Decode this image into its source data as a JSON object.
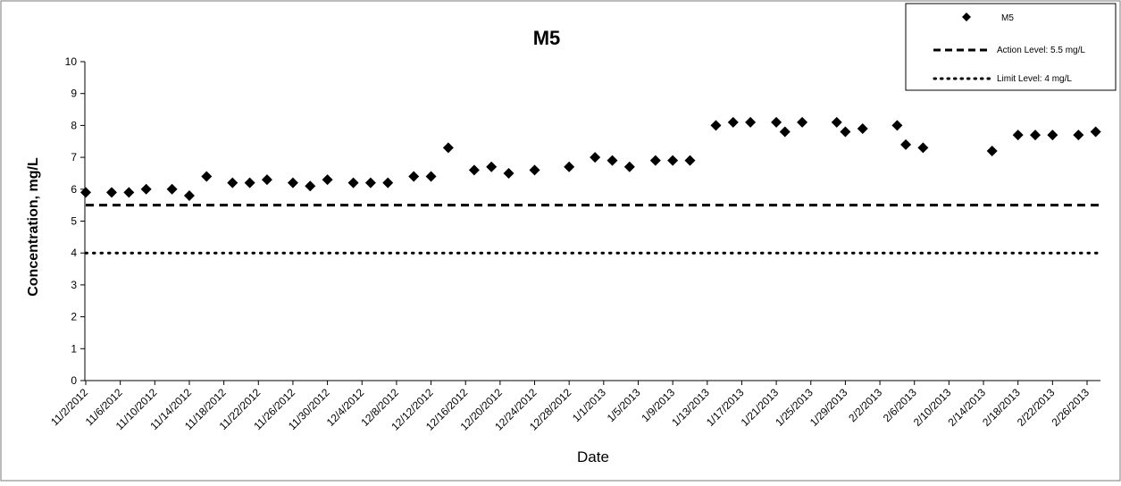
{
  "chart_data": {
    "type": "scatter",
    "title": "M5",
    "xlabel": "Date",
    "ylabel": "Concentration, mg/L",
    "ylim": [
      0,
      10
    ],
    "y_ticks": [
      0,
      1,
      2,
      3,
      4,
      5,
      6,
      7,
      8,
      9,
      10
    ],
    "x_tick_labels": [
      "11/2/2012",
      "11/6/2012",
      "11/10/2012",
      "11/14/2012",
      "11/18/2012",
      "11/22/2012",
      "11/26/2012",
      "11/30/2012",
      "12/4/2012",
      "12/8/2012",
      "12/12/2012",
      "12/16/2012",
      "12/20/2012",
      "12/24/2012",
      "12/28/2012",
      "1/1/2013",
      "1/5/2013",
      "1/9/2013",
      "1/13/2013",
      "1/17/2013",
      "1/21/2013",
      "1/25/2013",
      "1/29/2013",
      "2/2/2013",
      "2/6/2013",
      "2/10/2013",
      "2/14/2013",
      "2/18/2013",
      "2/22/2013",
      "2/26/2013"
    ],
    "grid": false,
    "legend_position": "top-right",
    "series": [
      {
        "name": "M5",
        "marker": "diamond",
        "points": [
          {
            "x": "11/2/2012",
            "y": 5.9
          },
          {
            "x": "11/5/2012",
            "y": 5.9
          },
          {
            "x": "11/7/2012",
            "y": 5.9
          },
          {
            "x": "11/9/2012",
            "y": 6.0
          },
          {
            "x": "11/12/2012",
            "y": 6.0
          },
          {
            "x": "11/14/2012",
            "y": 5.8
          },
          {
            "x": "11/16/2012",
            "y": 6.4
          },
          {
            "x": "11/19/2012",
            "y": 6.2
          },
          {
            "x": "11/21/2012",
            "y": 6.2
          },
          {
            "x": "11/23/2012",
            "y": 6.3
          },
          {
            "x": "11/26/2012",
            "y": 6.2
          },
          {
            "x": "11/28/2012",
            "y": 6.1
          },
          {
            "x": "11/30/2012",
            "y": 6.3
          },
          {
            "x": "12/3/2012",
            "y": 6.2
          },
          {
            "x": "12/5/2012",
            "y": 6.2
          },
          {
            "x": "12/7/2012",
            "y": 6.2
          },
          {
            "x": "12/10/2012",
            "y": 6.4
          },
          {
            "x": "12/12/2012",
            "y": 6.4
          },
          {
            "x": "12/14/2012",
            "y": 7.3
          },
          {
            "x": "12/17/2012",
            "y": 6.6
          },
          {
            "x": "12/19/2012",
            "y": 6.7
          },
          {
            "x": "12/21/2012",
            "y": 6.5
          },
          {
            "x": "12/24/2012",
            "y": 6.6
          },
          {
            "x": "12/28/2012",
            "y": 6.7
          },
          {
            "x": "12/31/2012",
            "y": 7.0
          },
          {
            "x": "1/2/2013",
            "y": 6.9
          },
          {
            "x": "1/4/2013",
            "y": 6.7
          },
          {
            "x": "1/7/2013",
            "y": 6.9
          },
          {
            "x": "1/9/2013",
            "y": 6.9
          },
          {
            "x": "1/11/2013",
            "y": 6.9
          },
          {
            "x": "1/14/2013",
            "y": 8.0
          },
          {
            "x": "1/16/2013",
            "y": 8.1
          },
          {
            "x": "1/18/2013",
            "y": 8.1
          },
          {
            "x": "1/21/2013",
            "y": 8.1
          },
          {
            "x": "1/22/2013",
            "y": 7.8
          },
          {
            "x": "1/24/2013",
            "y": 8.1
          },
          {
            "x": "1/28/2013",
            "y": 8.1
          },
          {
            "x": "1/29/2013",
            "y": 7.8
          },
          {
            "x": "1/31/2013",
            "y": 7.9
          },
          {
            "x": "2/4/2013",
            "y": 8.0
          },
          {
            "x": "2/5/2013",
            "y": 7.4
          },
          {
            "x": "2/7/2013",
            "y": 7.3
          },
          {
            "x": "2/15/2013",
            "y": 7.2
          },
          {
            "x": "2/18/2013",
            "y": 7.7
          },
          {
            "x": "2/20/2013",
            "y": 7.7
          },
          {
            "x": "2/22/2013",
            "y": 7.7
          },
          {
            "x": "2/25/2013",
            "y": 7.7
          },
          {
            "x": "2/27/2013",
            "y": 7.8
          }
        ]
      },
      {
        "name": "Action Level: 5.5 mg/L",
        "line_style": "dashed",
        "value": 5.5
      },
      {
        "name": "Limit Level: 4 mg/L",
        "line_style": "dotted",
        "value": 4
      }
    ]
  }
}
